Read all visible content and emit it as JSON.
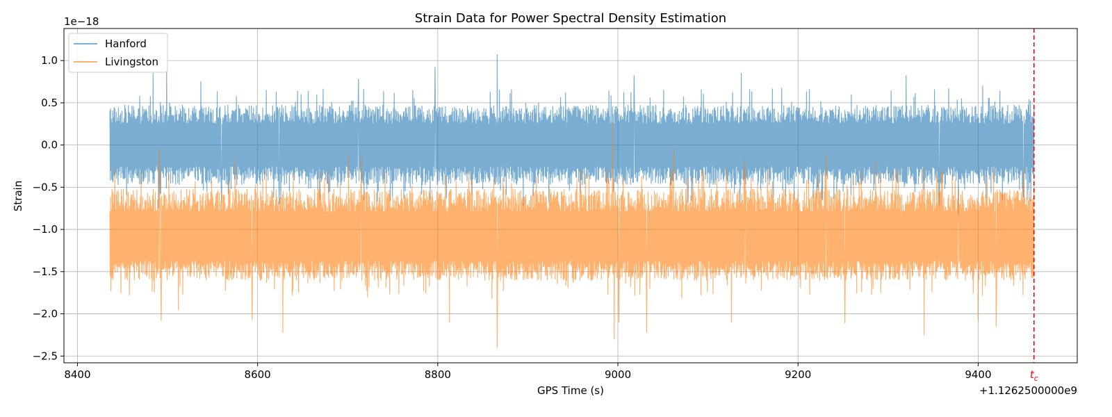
{
  "chart_data": {
    "type": "line",
    "title": "Strain Data for Power Spectral Density Estimation",
    "xlabel": "GPS Time (s)",
    "ylabel": "Strain",
    "x_offset_label": "+1.1262500000e9",
    "y_scale_label": "1e−18",
    "xlim": [
      8385,
      9510
    ],
    "ylim": [
      -2.58,
      1.38
    ],
    "x_ticks": [
      8400,
      8600,
      8800,
      9000,
      9200,
      9400
    ],
    "x_tick_labels": [
      "8400",
      "8600",
      "8800",
      "9000",
      "9200",
      "9400"
    ],
    "y_ticks": [
      1.0,
      0.5,
      0.0,
      -0.5,
      -1.0,
      -1.5,
      -2.0,
      -2.5
    ],
    "y_tick_labels": [
      "1.0",
      "0.5",
      "0.0",
      "−0.5",
      "−1.0",
      "−1.5",
      "−2.0",
      "−2.5"
    ],
    "grid": true,
    "legend_position": "top-left",
    "x_range": [
      8436,
      9462
    ],
    "series": [
      {
        "name": "Hanford",
        "color": "#1f77b4",
        "alpha": 0.6,
        "center": 0.0,
        "band": [
          -0.45,
          0.45
        ],
        "peaks": [
          [
            8484,
            0.85
          ],
          [
            8499,
            0.88
          ],
          [
            8537,
            0.75
          ],
          [
            8712,
            0.78
          ],
          [
            8797,
            0.92
          ],
          [
            8866,
            1.07
          ],
          [
            9018,
            0.82
          ],
          [
            9137,
            0.85
          ],
          [
            9320,
            0.82
          ],
          [
            9378,
            1.19
          ],
          [
            9405,
            0.7
          ]
        ],
        "troughs": [
          [
            8490,
            -0.75
          ],
          [
            8560,
            -0.68
          ],
          [
            8624,
            -0.7
          ],
          [
            8895,
            -0.72
          ],
          [
            9078,
            -0.68
          ],
          [
            9357,
            -0.72
          ],
          [
            9378,
            -0.83
          ],
          [
            9450,
            -0.62
          ]
        ]
      },
      {
        "name": "Livingston",
        "color": "#ff7f0e",
        "alpha": 0.6,
        "center": -1.1,
        "band": [
          -1.58,
          -0.55
        ],
        "peaks": [
          [
            8491,
            -0.05
          ],
          [
            8575,
            -0.15
          ],
          [
            8628,
            0.1
          ],
          [
            8701,
            -0.1
          ],
          [
            8715,
            -0.15
          ],
          [
            8866,
            -0.2
          ],
          [
            8994,
            0.27
          ],
          [
            9062,
            -0.05
          ],
          [
            9141,
            -0.18
          ],
          [
            9231,
            -0.1
          ],
          [
            9286,
            -0.2
          ],
          [
            9378,
            -0.9
          ]
        ],
        "troughs": [
          [
            8493,
            -2.08
          ],
          [
            8512,
            -1.95
          ],
          [
            8594,
            -2.07
          ],
          [
            8628,
            -2.22
          ],
          [
            8813,
            -2.1
          ],
          [
            8866,
            -2.4
          ],
          [
            8996,
            -2.3
          ],
          [
            9001,
            -2.1
          ],
          [
            9032,
            -2.22
          ],
          [
            9126,
            -2.1
          ],
          [
            9252,
            -2.11
          ],
          [
            9340,
            -2.25
          ],
          [
            9400,
            -2.08
          ],
          [
            9420,
            -2.15
          ]
        ]
      }
    ],
    "vline": {
      "x": 9462,
      "color": "#ff0000",
      "label": "t",
      "label_sub": "c"
    }
  }
}
